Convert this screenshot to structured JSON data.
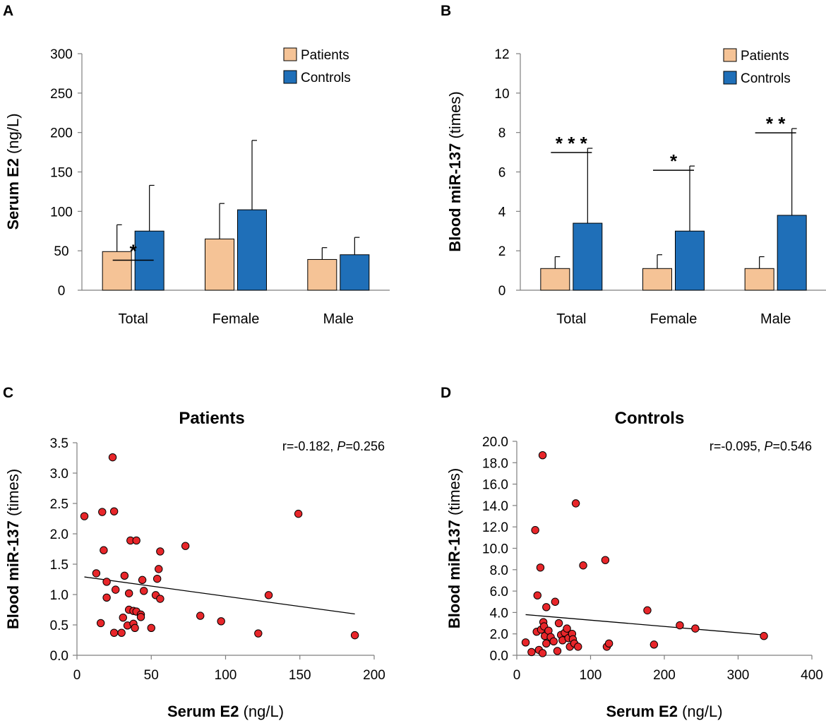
{
  "colors": {
    "patients": "#f5c396",
    "controls": "#1f6fb8",
    "point": "#e8262a"
  },
  "chart_data": [
    {
      "panel": "A",
      "type": "bar",
      "title": "",
      "ylabel_bold": "Serum E2",
      "ylabel_unit": "(ng/L)",
      "xlabel": "",
      "ylim": [
        0,
        300
      ],
      "yticks": [
        0,
        50,
        100,
        150,
        200,
        250,
        300
      ],
      "categories": [
        "Total",
        "Female",
        "Male"
      ],
      "series": [
        {
          "name": "Patients",
          "values": [
            49,
            65,
            39
          ],
          "errors": [
            34,
            45,
            15
          ]
        },
        {
          "name": "Controls",
          "values": [
            75,
            102,
            45
          ],
          "errors": [
            58,
            88,
            22
          ]
        }
      ],
      "significance": [
        {
          "category": "Total",
          "label": "*"
        }
      ],
      "legend": "top-right"
    },
    {
      "panel": "B",
      "type": "bar",
      "title": "",
      "ylabel_bold": "Blood miR-137",
      "ylabel_unit": "(times)",
      "xlabel": "",
      "ylim": [
        0,
        12
      ],
      "yticks": [
        0,
        2,
        4,
        6,
        8,
        10,
        12
      ],
      "categories": [
        "Total",
        "Female",
        "Male"
      ],
      "series": [
        {
          "name": "Patients",
          "values": [
            1.1,
            1.1,
            1.1
          ],
          "errors": [
            0.6,
            0.7,
            0.6
          ]
        },
        {
          "name": "Controls",
          "values": [
            3.4,
            3.0,
            3.8
          ],
          "errors": [
            3.8,
            3.3,
            4.4
          ]
        }
      ],
      "significance": [
        {
          "category": "Total",
          "label": "***"
        },
        {
          "category": "Female",
          "label": "*"
        },
        {
          "category": "Male",
          "label": "**"
        }
      ],
      "legend": "top-right"
    },
    {
      "panel": "C",
      "type": "scatter",
      "title": "Patients",
      "annotation_prefix": "r=-0.182,",
      "annotation_p": "P",
      "annotation_suffix": "=0.256",
      "xlabel_bold": "Serum E2",
      "xlabel_unit": "(ng/L)",
      "ylabel_bold": "Blood miR-137",
      "ylabel_unit": "(times)",
      "xlim": [
        0,
        200
      ],
      "ylim": [
        0,
        3.5
      ],
      "xticks": [
        0,
        50,
        100,
        150,
        200
      ],
      "yticks": [
        "0.0",
        "0.5",
        "1.0",
        "1.5",
        "2.0",
        "2.5",
        "3.0",
        "3.5"
      ],
      "x": [
        5,
        13,
        16,
        17,
        18,
        20,
        20,
        24,
        25,
        25,
        26,
        30,
        31,
        32,
        34,
        35,
        35,
        36,
        38,
        38,
        39,
        40,
        40,
        43,
        43,
        44,
        45,
        50,
        53,
        54,
        55,
        56,
        56,
        73,
        83,
        97,
        122,
        129,
        149,
        187
      ],
      "y": [
        2.29,
        1.35,
        0.53,
        2.36,
        1.73,
        0.95,
        1.21,
        3.26,
        2.37,
        0.37,
        1.08,
        0.37,
        0.62,
        1.31,
        0.49,
        0.75,
        1.02,
        1.89,
        0.73,
        0.52,
        0.45,
        0.72,
        1.89,
        0.67,
        0.63,
        1.24,
        1.06,
        0.45,
        0.99,
        1.26,
        1.42,
        0.93,
        1.71,
        1.8,
        0.65,
        0.56,
        0.36,
        0.99,
        2.33,
        0.33
      ],
      "trend": {
        "x": [
          5,
          187
        ],
        "y": [
          1.29,
          0.68
        ]
      }
    },
    {
      "panel": "D",
      "type": "scatter",
      "title": "Controls",
      "annotation_prefix": "r=-0.095,",
      "annotation_p": "P",
      "annotation_suffix": "=0.546",
      "xlabel_bold": "Serum E2",
      "xlabel_unit": "(ng/L)",
      "ylabel_bold": "Blood miR-137",
      "ylabel_unit": "(times)",
      "xlim": [
        0,
        400
      ],
      "ylim": [
        0,
        20
      ],
      "xticks": [
        0,
        100,
        200,
        300,
        400
      ],
      "yticks": [
        "0.0",
        "2.0",
        "4.0",
        "6.0",
        "8.0",
        "10.0",
        "12.0",
        "14.0",
        "16.0",
        "18.0",
        "20.0"
      ],
      "x": [
        12,
        20,
        25,
        27,
        28,
        30,
        32,
        33,
        35,
        35,
        36,
        37,
        38,
        40,
        40,
        43,
        46,
        50,
        52,
        55,
        57,
        60,
        62,
        65,
        68,
        70,
        72,
        75,
        76,
        78,
        80,
        83,
        90,
        120,
        122,
        125,
        177,
        186,
        221,
        242,
        335
      ],
      "y": [
        1.2,
        0.3,
        11.7,
        2.2,
        5.6,
        0.5,
        8.2,
        2.4,
        18.7,
        0.2,
        3.1,
        2.7,
        1.8,
        4.5,
        1.1,
        2.3,
        1.7,
        1.3,
        5.0,
        0.4,
        3.0,
        1.9,
        1.4,
        2.1,
        2.5,
        1.6,
        0.8,
        2.0,
        1.5,
        1.1,
        14.2,
        0.8,
        8.4,
        8.9,
        0.8,
        1.1,
        4.2,
        1.0,
        2.8,
        2.5,
        1.8
      ],
      "trend": {
        "x": [
          12,
          335
        ],
        "y": [
          3.8,
          1.9
        ]
      }
    }
  ]
}
